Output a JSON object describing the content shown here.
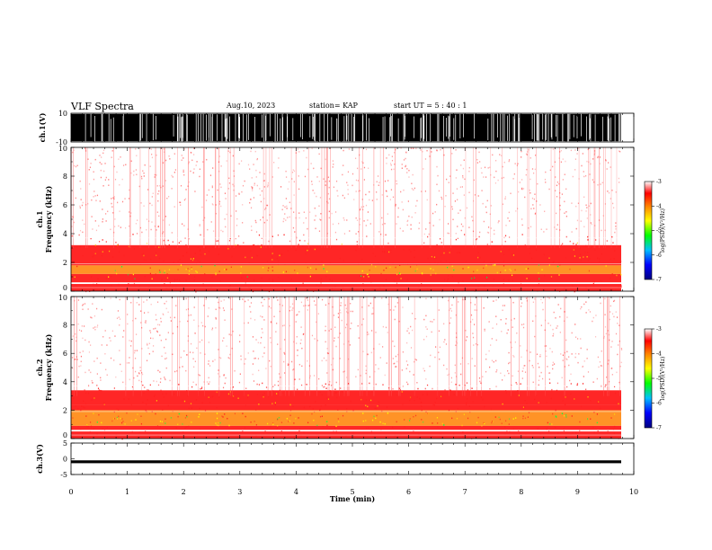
{
  "header": {
    "title": "VLF Spectra",
    "date": "Aug.10, 2023",
    "station": "station= KAP",
    "start_ut": "start  UT =   5 : 40 : 1"
  },
  "colors": {
    "colormap": [
      "#000080",
      "#0000ff",
      "#00c0ff",
      "#00ff00",
      "#ffff00",
      "#ff8000",
      "#ff0000",
      "#ffffff"
    ],
    "waveform": "#000000"
  },
  "chart_data": [
    {
      "type": "line",
      "name": "ch1-waveform",
      "ylabel": "ch.1(V)",
      "ylim": [
        -10,
        10
      ],
      "yticks": [
        "10",
        "-10"
      ],
      "xlim": [
        0,
        10
      ],
      "description_values": "saturated broadband signal spanning roughly -10 to 10 V"
    },
    {
      "type": "heatmap",
      "name": "ch1-spectrogram",
      "ylabel": "ch.1\nFrequency  (kHz)",
      "ylabel_line1": "ch.1",
      "ylabel_line2": "Frequency  (kHz)",
      "ylim": [
        0,
        10
      ],
      "yticks": [
        "0",
        "2",
        "4",
        "6",
        "8",
        "10"
      ],
      "xlim": [
        0,
        10
      ],
      "bands": [
        {
          "f_lo": 0.0,
          "f_hi": 0.5,
          "level": -3.3
        },
        {
          "f_lo": 0.6,
          "f_hi": 1.2,
          "level": -3.5
        },
        {
          "f_lo": 1.2,
          "f_hi": 1.8,
          "level": -4.0
        },
        {
          "f_lo": 1.8,
          "f_hi": 3.2,
          "level": -3.4
        },
        {
          "f_lo": 3.2,
          "f_hi": 10.0,
          "level": -3.1
        }
      ],
      "colorbar": {
        "label": "log(PSD)(V²/Hz)",
        "range": [
          -7,
          -3
        ],
        "ticks": [
          "-3",
          "-4",
          "-5",
          "-6",
          "-7"
        ]
      }
    },
    {
      "type": "heatmap",
      "name": "ch2-spectrogram",
      "ylabel_line1": "ch.2",
      "ylabel_line2": "Frequency  (kHz)",
      "ylim": [
        0,
        10
      ],
      "yticks": [
        "0",
        "2",
        "4",
        "6",
        "8",
        "10"
      ],
      "xlim": [
        0,
        10
      ],
      "bands": [
        {
          "f_lo": 0.0,
          "f_hi": 0.5,
          "level": -3.4
        },
        {
          "f_lo": 0.6,
          "f_hi": 0.9,
          "level": -3.6
        },
        {
          "f_lo": 0.9,
          "f_hi": 2.0,
          "level": -4.4
        },
        {
          "f_lo": 2.0,
          "f_hi": 2.4,
          "level": -3.8
        },
        {
          "f_lo": 2.4,
          "f_hi": 3.4,
          "level": -3.7
        },
        {
          "f_lo": 3.4,
          "f_hi": 10.0,
          "level": -3.1
        }
      ],
      "colorbar": {
        "label": "log(PSD)(V²/Hz)",
        "range": [
          -7,
          -3
        ],
        "ticks": [
          "-3",
          "-4",
          "-5",
          "-6",
          "-7"
        ]
      }
    },
    {
      "type": "line",
      "name": "ch3-waveform",
      "ylabel": "ch.3(V)",
      "ylim": [
        -5,
        5
      ],
      "yticks": [
        "5",
        "0",
        "-5"
      ],
      "xlim": [
        0,
        10
      ],
      "xlabel": "Time  (min)",
      "xticks": [
        "0",
        "1",
        "2",
        "3",
        "4",
        "5",
        "6",
        "7",
        "8",
        "9",
        "10"
      ],
      "description_values": "nearly constant band around -1 V, amplitude about ±0.5 V"
    }
  ]
}
